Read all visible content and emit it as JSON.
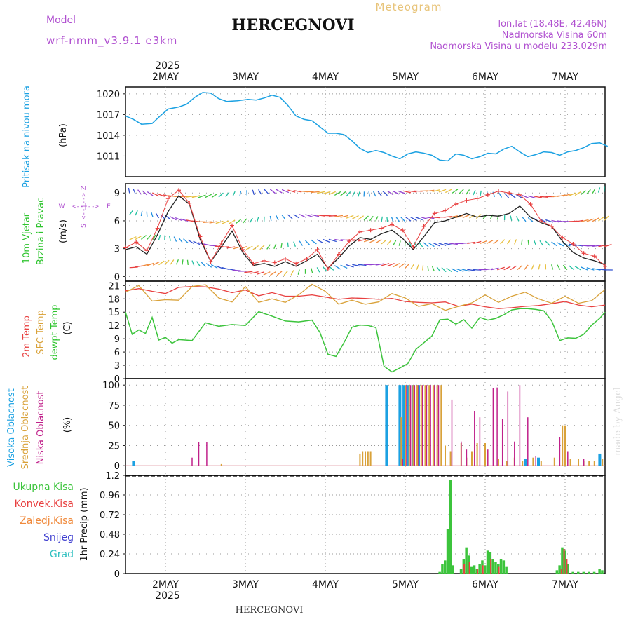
{
  "header": {
    "model_label": "Model",
    "model_value": "wrf-nmm_v3.9.1  e3km",
    "station": "HERCEGNOVI",
    "meteogram": "Meteogram",
    "lonlat": "lon,lat (18.48E, 42.46N)",
    "elevation": "Nadmorska Visina 60m",
    "model_elevation": "Nadmorska Visina u modelu 233.029m",
    "footer_station": "HERCEGNOVI",
    "watermark": "made by Angel"
  },
  "colors": {
    "pressure": "#1ba1e2",
    "wind_speed": "#222222",
    "gust": "#e84040",
    "temp2m": "#e84040",
    "sfc": "#d9a23a",
    "dew": "#3cc43c",
    "cloud_high": "#1ba1e2",
    "cloud_mid": "#d9a23a",
    "cloud_low": "#c0208a",
    "precip": "#3cc43c",
    "grid": "#999999",
    "legend_purple": "#b050d0"
  },
  "chart_data": [
    {
      "type": "line",
      "panel": "pressure",
      "ylabel_main": "Pritisak na nivou mora",
      "ylabel_unit": "(hPa)",
      "year_label": "2025",
      "date_labels": [
        "2MAY",
        "3MAY",
        "4MAY",
        "5MAY",
        "6MAY",
        "7MAY"
      ],
      "ylim": [
        1008,
        1021
      ],
      "yticks": [
        1011,
        1014,
        1017,
        1020
      ],
      "series": [
        {
          "name": "pressure",
          "x": [
            0,
            0.3,
            0.6,
            1,
            1.3,
            1.6,
            2,
            2.3,
            2.6,
            2.9,
            3.2,
            3.5,
            3.8,
            4.2,
            4.6,
            4.9,
            5.2,
            5.5,
            5.8,
            6.1,
            6.4,
            6.7,
            7,
            7.3,
            7.6,
            7.9,
            8.2,
            8.5,
            8.8,
            9.1,
            9.4,
            9.7,
            10,
            10.3,
            10.6,
            10.9,
            11.2,
            11.5,
            11.8,
            12.1,
            12.4,
            12.7,
            13,
            13.3,
            13.6,
            13.9,
            14.2,
            14.5,
            14.8,
            15.1,
            15.4,
            15.7,
            16,
            16.3,
            16.6,
            16.9,
            17.2,
            17.5,
            17.8,
            18.1
          ],
          "values": [
            1016.8,
            1016.3,
            1015.6,
            1015.7,
            1016.8,
            1017.8,
            1018.1,
            1018.5,
            1019.5,
            1020.2,
            1020.1,
            1019.3,
            1018.9,
            1019.0,
            1019.2,
            1019.1,
            1019.4,
            1019.8,
            1019.5,
            1018.3,
            1016.8,
            1016.3,
            1016.1,
            1015.2,
            1014.3,
            1014.3,
            1014.1,
            1013.2,
            1012.1,
            1011.5,
            1011.8,
            1011.5,
            1011.0,
            1010.6,
            1011.3,
            1011.6,
            1011.4,
            1011.1,
            1010.4,
            1010.3,
            1011.3,
            1011.1,
            1010.6,
            1010.9,
            1011.4,
            1011.3,
            1012.0,
            1012.4,
            1011.6,
            1010.9,
            1011.2,
            1011.6,
            1011.5,
            1011.1,
            1011.6,
            1011.8,
            1012.2,
            1012.8,
            1012.9,
            1012.4
          ]
        }
      ]
    },
    {
      "type": "line",
      "panel": "wind",
      "ylabel_main": "10m Vjetar",
      "ylabel_sub": "Brzina i Pravac",
      "ylabel_unit": "(m/s)",
      "compass_labels": [
        "Z",
        "W",
        "E",
        "S"
      ],
      "compass_arrow": "<--|-->",
      "ylim": [
        -0.5,
        10
      ],
      "yticks": [
        0,
        3,
        6,
        9
      ],
      "series": [
        {
          "name": "speed",
          "x": [
            0,
            0.4,
            0.8,
            1.2,
            1.6,
            2,
            2.4,
            2.8,
            3.2,
            3.6,
            4,
            4.4,
            4.8,
            5.2,
            5.6,
            6,
            6.4,
            6.8,
            7.2,
            7.6,
            8,
            8.4,
            8.8,
            9.2,
            9.6,
            10,
            10.4,
            10.8,
            11.2,
            11.6,
            12,
            12.4,
            12.8,
            13.2,
            13.6,
            14,
            14.4,
            14.8,
            15.2,
            15.6,
            16,
            16.4,
            16.8,
            17.2,
            17.6,
            18
          ],
          "values": [
            2.9,
            3.2,
            2.4,
            4.5,
            7.0,
            8.7,
            7.8,
            4.0,
            1.6,
            3.2,
            4.9,
            2.6,
            1.2,
            1.4,
            1.1,
            1.6,
            1.1,
            1.7,
            2.4,
            0.9,
            2.0,
            3.3,
            4.2,
            4.0,
            4.6,
            5.0,
            4.1,
            2.9,
            4.3,
            5.8,
            6.0,
            6.4,
            6.8,
            6.4,
            6.6,
            6.5,
            6.8,
            7.6,
            6.4,
            5.8,
            5.4,
            3.8,
            2.6,
            2.0,
            1.7,
            1.3
          ]
        },
        {
          "name": "gust",
          "x": [
            0,
            0.4,
            0.8,
            1.2,
            1.6,
            2,
            2.4,
            2.8,
            3.2,
            3.6,
            4,
            4.4,
            4.8,
            5.2,
            5.6,
            6,
            6.4,
            6.8,
            7.2,
            7.6,
            8,
            8.4,
            8.8,
            9.2,
            9.6,
            10,
            10.4,
            10.8,
            11.2,
            11.6,
            12,
            12.4,
            12.8,
            13.2,
            13.6,
            14,
            14.4,
            14.8,
            15.2,
            15.6,
            16,
            16.4,
            16.8,
            17.2,
            17.6,
            18
          ],
          "values": [
            3.1,
            3.7,
            2.8,
            5.2,
            8.4,
            9.3,
            7.9,
            4.3,
            1.6,
            3.6,
            5.5,
            2.9,
            1.4,
            1.7,
            1.5,
            1.9,
            1.4,
            1.9,
            2.9,
            0.8,
            2.4,
            3.8,
            4.8,
            5.0,
            5.2,
            5.6,
            5.0,
            3.2,
            5.4,
            6.8,
            7.1,
            7.8,
            8.2,
            8.4,
            8.8,
            9.2,
            9.0,
            8.8,
            7.8,
            6.0,
            5.4,
            4.2,
            3.5,
            2.5,
            2.2,
            1.1
          ]
        }
      ]
    },
    {
      "type": "line",
      "panel": "temperature",
      "ylabel_temp": "2m Temp",
      "ylabel_sfc": "SFC Temp",
      "ylabel_dew": "dewpt Temp",
      "ylabel_unit": "(C)",
      "ylim": [
        0,
        22
      ],
      "yticks": [
        0,
        3,
        6,
        9,
        12,
        15,
        18,
        21
      ],
      "series": [
        {
          "name": "2m Temp",
          "x": [
            0,
            0.5,
            1,
            1.5,
            2,
            2.5,
            3,
            3.5,
            4,
            4.5,
            5,
            5.5,
            6,
            6.5,
            7,
            7.5,
            8,
            8.5,
            9,
            9.5,
            10,
            10.5,
            11,
            11.5,
            12,
            12.5,
            13,
            13.5,
            14,
            14.5,
            15,
            15.5,
            16,
            16.5,
            17,
            17.5,
            18
          ],
          "values": [
            19.8,
            20.3,
            19.7,
            19.2,
            20.6,
            20.8,
            20.7,
            20.2,
            19.4,
            20.0,
            18.7,
            19.4,
            18.6,
            18.6,
            18.9,
            18.4,
            17.9,
            18.2,
            18.1,
            17.9,
            18.1,
            17.4,
            17.2,
            17.1,
            17.3,
            16.3,
            16.8,
            16.2,
            15.8,
            16.0,
            16.3,
            16.5,
            16.9,
            17.4,
            16.6,
            16.2,
            16.6
          ]
        },
        {
          "name": "SFC Temp",
          "x": [
            0,
            0.5,
            1,
            1.5,
            2,
            2.5,
            3,
            3.5,
            4,
            4.5,
            5,
            5.5,
            6,
            6.5,
            7,
            7.5,
            8,
            8.5,
            9,
            9.5,
            10,
            10.5,
            11,
            11.5,
            12,
            12.5,
            13,
            13.5,
            14,
            14.5,
            15,
            15.5,
            16,
            16.5,
            17,
            17.5,
            18
          ],
          "values": [
            19.5,
            21.0,
            17.5,
            17.8,
            17.7,
            20.8,
            21.2,
            18.2,
            17.3,
            20.8,
            17.2,
            18.0,
            17.2,
            18.9,
            21.3,
            19.7,
            16.8,
            17.7,
            16.8,
            17.3,
            19.2,
            18.2,
            16.3,
            16.9,
            15.4,
            16.3,
            17.1,
            18.9,
            17.2,
            18.6,
            19.5,
            18.0,
            17.0,
            18.6,
            17.0,
            17.6,
            20.1
          ]
        },
        {
          "name": "dewpt Temp",
          "x": [
            0,
            0.25,
            0.5,
            0.75,
            1,
            1.25,
            1.5,
            1.75,
            2,
            2.5,
            3,
            3.5,
            4,
            4.5,
            5,
            5.5,
            6,
            6.5,
            7,
            7.3,
            7.6,
            7.9,
            8.2,
            8.5,
            8.8,
            9.1,
            9.4,
            9.7,
            10,
            10.3,
            10.6,
            10.9,
            11.2,
            11.5,
            11.8,
            12.1,
            12.4,
            12.7,
            13,
            13.3,
            13.6,
            13.9,
            14.2,
            14.5,
            14.8,
            15.1,
            15.4,
            15.7,
            16,
            16.3,
            16.6,
            16.9,
            17.2,
            17.5,
            17.8,
            18
          ],
          "values": [
            15.0,
            10.0,
            11.0,
            10.2,
            13.8,
            8.7,
            9.3,
            8.0,
            8.8,
            8.6,
            12.6,
            11.8,
            12.2,
            12.0,
            15.1,
            14.1,
            13.0,
            12.8,
            13.2,
            10.4,
            5.5,
            5.0,
            8.1,
            11.6,
            12.1,
            12.0,
            11.5,
            2.8,
            1.5,
            2.4,
            3.4,
            6.6,
            8.1,
            9.6,
            13.3,
            13.4,
            12.3,
            13.3,
            11.4,
            13.8,
            13.2,
            13.6,
            14.4,
            15.5,
            15.8,
            15.8,
            15.6,
            15.3,
            13.0,
            8.6,
            9.2,
            9.1,
            10.0,
            12.1,
            13.6,
            15.0
          ]
        }
      ]
    },
    {
      "type": "bar",
      "panel": "clouds",
      "ylabel_high": "Visoka Oblacnost",
      "ylabel_mid": "Srednja Oblacnost",
      "ylabel_low": "Niska Oblacnost",
      "ylabel_unit": "(%)",
      "ylim": [
        0,
        100
      ],
      "yticks": [
        0,
        25,
        50,
        75,
        100
      ],
      "series": [
        {
          "name": "Visoka Oblacnost",
          "x": [
            0.3,
            9.8,
            10.3,
            10.45,
            10.6,
            10.8,
            11.0,
            15.0,
            15.5,
            17.8
          ],
          "values": [
            6,
            100,
            100,
            100,
            100,
            100,
            100,
            8,
            10,
            15
          ]
        },
        {
          "name": "Srednja Oblacnost",
          "x": [
            3.6,
            8.8,
            8.9,
            9.0,
            9.1,
            9.2,
            10.35,
            10.5,
            10.65,
            10.8,
            10.95,
            11.1,
            11.25,
            11.4,
            11.55,
            11.7,
            11.85,
            12.0,
            12.2,
            12.6,
            12.8,
            13.0,
            13.2,
            13.5,
            14.0,
            14.3,
            14.6,
            14.9,
            15.3,
            15.6,
            16.1,
            16.4,
            16.5,
            16.7,
            17.0,
            17.2,
            17.4,
            17.6,
            17.9
          ],
          "values": [
            2,
            15,
            18,
            18,
            18,
            18,
            60,
            100,
            100,
            100,
            100,
            100,
            100,
            100,
            100,
            100,
            100,
            25,
            18,
            28,
            10,
            18,
            28,
            28,
            8,
            6,
            10,
            6,
            10,
            6,
            10,
            50,
            50,
            8,
            8,
            6,
            6,
            6,
            8
          ]
        },
        {
          "name": "Niska Oblacnost",
          "x": [
            2.5,
            2.75,
            3.05,
            10.4,
            10.55,
            10.7,
            10.85,
            11.0,
            11.15,
            11.3,
            11.45,
            11.6,
            11.75,
            12.25,
            12.6,
            12.8,
            13.1,
            13.3,
            13.6,
            13.8,
            13.95,
            14.15,
            14.35,
            14.6,
            14.8,
            15.1,
            15.4,
            16.3,
            16.6,
            17.2
          ],
          "values": [
            10,
            29,
            29,
            8,
            100,
            100,
            100,
            100,
            100,
            100,
            100,
            100,
            100,
            82,
            30,
            20,
            68,
            60,
            20,
            96,
            97,
            58,
            92,
            30,
            100,
            60,
            12,
            35,
            18,
            8
          ]
        }
      ]
    },
    {
      "type": "bar",
      "panel": "precip",
      "legend": [
        "Ukupna Kisa",
        "Konvek.Kisa",
        "Zaledj.Kisa",
        "Snijeg",
        "Grad"
      ],
      "legend_colors": [
        "#3cc43c",
        "#e84040",
        "#f08a3c",
        "#4040d0",
        "#30c0c0"
      ],
      "ylabel_unit": "1hr Precip (mm)",
      "ylim": [
        0,
        1.2
      ],
      "yticks": [
        0,
        0.24,
        0.48,
        0.72,
        0.96,
        1.2
      ],
      "ytick_labels": [
        "0",
        "0.24",
        "0.48",
        "0.72",
        "0.96",
        "1.2"
      ],
      "year_label": "2025",
      "date_labels": [
        "2MAY",
        "3MAY",
        "4MAY",
        "5MAY",
        "6MAY",
        "7MAY"
      ],
      "series": [
        {
          "name": "Ukupna Kisa",
          "x": [
            11.8,
            11.9,
            12.0,
            12.1,
            12.2,
            12.3,
            12.6,
            12.7,
            12.8,
            12.9,
            13.0,
            13.1,
            13.2,
            13.3,
            13.4,
            13.5,
            13.6,
            13.7,
            13.8,
            13.9,
            14.0,
            14.1,
            14.2,
            14.3,
            16.2,
            16.3,
            16.4,
            16.5,
            16.6,
            16.8,
            17.0,
            17.2,
            17.4,
            17.6,
            17.8,
            17.9
          ],
          "values": [
            0.02,
            0.12,
            0.16,
            0.54,
            1.14,
            0.1,
            0.06,
            0.18,
            0.32,
            0.22,
            0.08,
            0.1,
            0.06,
            0.12,
            0.16,
            0.1,
            0.28,
            0.26,
            0.18,
            0.14,
            0.12,
            0.18,
            0.16,
            0.08,
            0.04,
            0.1,
            0.32,
            0.28,
            0.12,
            0.02,
            0.02,
            0.02,
            0.02,
            0.02,
            0.06,
            0.04
          ]
        },
        {
          "name": "Konvek.Kisa",
          "x": [
            12.7,
            12.9,
            13.2,
            13.4,
            13.7,
            14.0,
            16.35,
            16.45,
            16.55
          ],
          "values": [
            0.12,
            0.14,
            0.06,
            0.1,
            0.18,
            0.08,
            0.06,
            0.3,
            0.18
          ]
        }
      ]
    }
  ]
}
